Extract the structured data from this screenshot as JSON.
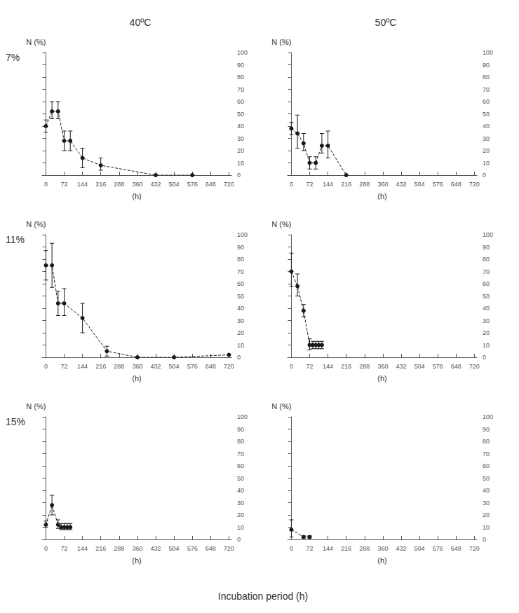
{
  "xlabel": "Incubation period (h)",
  "chart_data": [
    {
      "type": "line",
      "title": "40ºC",
      "annotations": [
        "7%"
      ],
      "xlabel": "(h)",
      "ylabel": "N (%)",
      "x": [
        0,
        24,
        48,
        72,
        96,
        144,
        216,
        432,
        576
      ],
      "values": [
        40,
        52,
        52,
        28,
        28,
        14,
        8,
        0,
        0
      ],
      "error_low": [
        5,
        6,
        6,
        8,
        8,
        8,
        4,
        0,
        0
      ],
      "error_high": [
        5,
        8,
        8,
        8,
        8,
        8,
        6,
        0,
        0
      ],
      "xlim": [
        -15,
        730
      ],
      "xticks": [
        0,
        72,
        144,
        216,
        288,
        360,
        432,
        504,
        576,
        648,
        720
      ],
      "ylim": [
        0,
        100
      ],
      "yticks": [
        0,
        10,
        20,
        30,
        40,
        50,
        60,
        70,
        80,
        90,
        100
      ],
      "color": "#1a1a1a",
      "line_style": "dashed",
      "marker": "circle",
      "grid": false
    },
    {
      "type": "line",
      "title": "50ºC",
      "xlabel": "(h)",
      "ylabel": "N (%)",
      "x": [
        0,
        24,
        48,
        72,
        96,
        120,
        144,
        216
      ],
      "values": [
        38,
        34,
        26,
        10,
        10,
        24,
        24,
        0
      ],
      "error_low": [
        5,
        12,
        6,
        5,
        5,
        6,
        10,
        0
      ],
      "error_high": [
        5,
        15,
        8,
        5,
        5,
        10,
        12,
        0
      ],
      "xlim": [
        -15,
        730
      ],
      "xticks": [
        0,
        72,
        144,
        216,
        288,
        360,
        432,
        504,
        576,
        648,
        720
      ],
      "ylim": [
        0,
        100
      ],
      "yticks": [
        0,
        10,
        20,
        30,
        40,
        50,
        60,
        70,
        80,
        90,
        100
      ],
      "color": "#1a1a1a",
      "line_style": "dashed",
      "marker": "circle",
      "grid": false
    },
    {
      "type": "line",
      "annotations": [
        "11%"
      ],
      "xlabel": "(h)",
      "ylabel": "N (%)",
      "x": [
        0,
        24,
        48,
        72,
        144,
        240,
        360,
        504,
        720
      ],
      "values": [
        75,
        75,
        44,
        44,
        32,
        5,
        0,
        0,
        2
      ],
      "error_low": [
        12,
        18,
        10,
        10,
        12,
        4,
        0,
        0,
        0
      ],
      "error_high": [
        12,
        18,
        10,
        12,
        12,
        4,
        0,
        0,
        0
      ],
      "xlim": [
        -15,
        730
      ],
      "xticks": [
        0,
        72,
        144,
        216,
        288,
        360,
        432,
        504,
        576,
        648,
        720
      ],
      "ylim": [
        0,
        100
      ],
      "yticks": [
        0,
        10,
        20,
        30,
        40,
        50,
        60,
        70,
        80,
        90,
        100
      ],
      "color": "#1a1a1a",
      "line_style": "dashed",
      "marker": "circle",
      "grid": false
    },
    {
      "type": "line",
      "xlabel": "(h)",
      "ylabel": "N (%)",
      "x": [
        0,
        24,
        48,
        72,
        84,
        96,
        108,
        120
      ],
      "values": [
        70,
        58,
        38,
        10,
        10,
        10,
        10,
        10
      ],
      "error_low": [
        12,
        8,
        5,
        4,
        3,
        3,
        3,
        3
      ],
      "error_high": [
        15,
        10,
        5,
        5,
        3,
        3,
        3,
        3
      ],
      "xlim": [
        -15,
        730
      ],
      "xticks": [
        0,
        72,
        144,
        216,
        288,
        360,
        432,
        504,
        576,
        648,
        720
      ],
      "ylim": [
        0,
        100
      ],
      "yticks": [
        0,
        10,
        20,
        30,
        40,
        50,
        60,
        70,
        80,
        90,
        100
      ],
      "color": "#1a1a1a",
      "line_style": "dashed",
      "marker": "circle",
      "grid": false
    },
    {
      "type": "line",
      "annotations": [
        "15%"
      ],
      "xlabel": "(h)",
      "ylabel": "N (%)",
      "x": [
        0,
        24,
        48,
        60,
        72,
        84,
        96
      ],
      "values": [
        12,
        28,
        12,
        10,
        10,
        10,
        10
      ],
      "error_low": [
        2,
        8,
        3,
        2,
        2,
        2,
        2
      ],
      "error_high": [
        3,
        8,
        4,
        3,
        3,
        3,
        3
      ],
      "xlim": [
        -15,
        730
      ],
      "xticks": [
        0,
        72,
        144,
        216,
        288,
        360,
        432,
        504,
        576,
        648,
        720
      ],
      "ylim": [
        0,
        100
      ],
      "yticks": [
        0,
        10,
        20,
        30,
        40,
        50,
        60,
        70,
        80,
        90,
        100
      ],
      "color": "#1a1a1a",
      "line_style": "dashed",
      "marker": "circle",
      "grid": false
    },
    {
      "type": "line",
      "xlabel": "(h)",
      "ylabel": "N (%)",
      "x": [
        0,
        48,
        72
      ],
      "values": [
        8,
        2,
        2
      ],
      "error_low": [
        6,
        1,
        1
      ],
      "error_high": [
        8,
        1,
        1
      ],
      "xlim": [
        -15,
        730
      ],
      "xticks": [
        0,
        72,
        144,
        216,
        288,
        360,
        432,
        504,
        576,
        648,
        720
      ],
      "ylim": [
        0,
        100
      ],
      "yticks": [
        0,
        10,
        20,
        30,
        40,
        50,
        60,
        70,
        80,
        90,
        100
      ],
      "color": "#1a1a1a",
      "line_style": "dashed",
      "marker": "circle",
      "grid": false
    }
  ]
}
